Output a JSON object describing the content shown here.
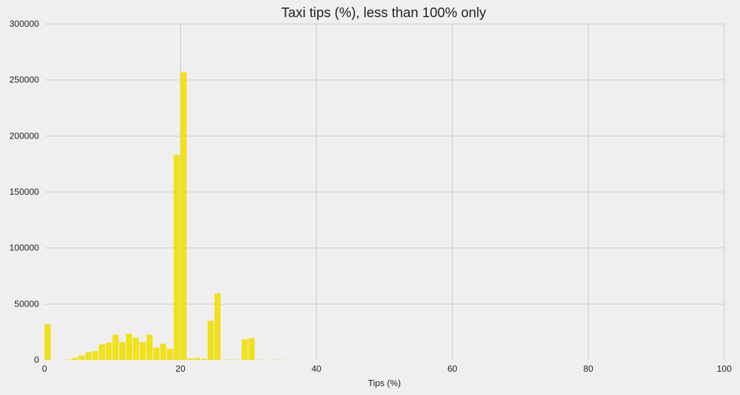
{
  "chart_data": {
    "type": "bar",
    "title": "Taxi tips (%), less than 100% only",
    "xlabel": "Tips (%)",
    "ylabel": "",
    "xlim": [
      0,
      100
    ],
    "ylim": [
      0,
      300000
    ],
    "xticks": [
      0,
      20,
      40,
      60,
      80,
      100
    ],
    "yticks": [
      0,
      50000,
      100000,
      150000,
      200000,
      250000,
      300000
    ],
    "grid": true,
    "bin_width": 1,
    "series": [
      {
        "bins": [
          {
            "x": 0,
            "value": 32000
          },
          {
            "x": 1,
            "value": 0
          },
          {
            "x": 2,
            "value": 0
          },
          {
            "x": 3,
            "value": 500
          },
          {
            "x": 4,
            "value": 2000
          },
          {
            "x": 5,
            "value": 4000
          },
          {
            "x": 6,
            "value": 7000
          },
          {
            "x": 7,
            "value": 8000
          },
          {
            "x": 8,
            "value": 14000
          },
          {
            "x": 9,
            "value": 15500
          },
          {
            "x": 10,
            "value": 22500
          },
          {
            "x": 11,
            "value": 16000
          },
          {
            "x": 12,
            "value": 23500
          },
          {
            "x": 13,
            "value": 20000
          },
          {
            "x": 14,
            "value": 16000
          },
          {
            "x": 15,
            "value": 22500
          },
          {
            "x": 16,
            "value": 11000
          },
          {
            "x": 17,
            "value": 14500
          },
          {
            "x": 18,
            "value": 10000
          },
          {
            "x": 19,
            "value": 183000
          },
          {
            "x": 20,
            "value": 257000
          },
          {
            "x": 21,
            "value": 1500
          },
          {
            "x": 22,
            "value": 2000
          },
          {
            "x": 23,
            "value": 1000
          },
          {
            "x": 24,
            "value": 35000
          },
          {
            "x": 25,
            "value": 59500
          },
          {
            "x": 26,
            "value": 200
          },
          {
            "x": 27,
            "value": 500
          },
          {
            "x": 28,
            "value": 200
          },
          {
            "x": 29,
            "value": 18500
          },
          {
            "x": 30,
            "value": 19500
          },
          {
            "x": 31,
            "value": 300
          },
          {
            "x": 32,
            "value": 100
          },
          {
            "x": 33,
            "value": 100
          },
          {
            "x": 34,
            "value": 400
          },
          {
            "x": 35,
            "value": 100
          }
        ]
      }
    ],
    "colors": {
      "background": "#efefef",
      "bar": "#f0e11c",
      "grid": "#cbcbcb",
      "text": "#222222"
    }
  }
}
